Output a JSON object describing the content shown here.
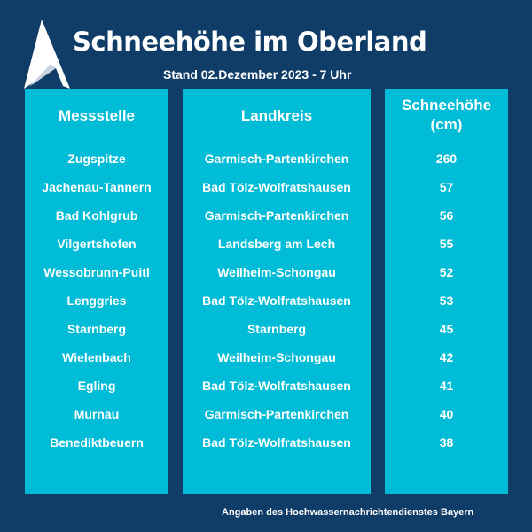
{
  "header": {
    "title": "Schneehöhe im Oberland",
    "subtitle": "Stand 02.Dezember 2023 - 7 Uhr"
  },
  "table": {
    "columns": [
      "Messstelle",
      "Landkreis",
      "Schneehöhe (cm)"
    ],
    "rows": [
      [
        "Zugspitze",
        "Garmisch-Partenkirchen",
        "260"
      ],
      [
        "Jachenau-Tannern",
        "Bad Tölz-Wolfratshausen",
        "57"
      ],
      [
        "Bad Kohlgrub",
        "Garmisch-Partenkirchen",
        "56"
      ],
      [
        "Vilgertshofen",
        "Landsberg am Lech",
        "55"
      ],
      [
        "Wessobrunn-Puitl",
        "Weilheim-Schongau",
        "52"
      ],
      [
        "Lenggries",
        "Bad Tölz-Wolfratshausen",
        "53"
      ],
      [
        "Starnberg",
        "Starnberg",
        "45"
      ],
      [
        "Wielenbach",
        "Weilheim-Schongau",
        "42"
      ],
      [
        "Egling",
        "Bad Tölz-Wolfratshausen",
        "41"
      ],
      [
        "Murnau",
        "Garmisch-Partenkirchen",
        "40"
      ],
      [
        "Benediktbeuern",
        "Bad Tölz-Wolfratshausen",
        "38"
      ]
    ]
  },
  "footer": "Angaben des  Hochwassernachrichtendienstes Bayern",
  "colors": {
    "background": "#0f3d68",
    "panel": "#00bcd6"
  }
}
